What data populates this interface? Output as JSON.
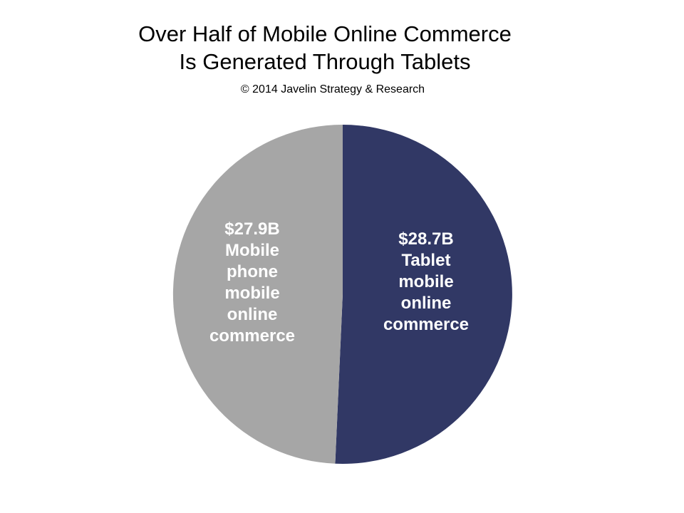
{
  "chart_data": {
    "type": "pie",
    "title_lines": [
      "Over Half of Mobile Online Commerce",
      "Is Generated Through Tablets"
    ],
    "subtitle": "© 2014 Javelin Strategy & Research",
    "slices": [
      {
        "value": 28.7,
        "color": "#313865",
        "label_lines": [
          "$28.7B",
          "Tablet",
          "mobile",
          "online",
          "commerce"
        ]
      },
      {
        "value": 27.9,
        "color": "#a6a6a6",
        "label_lines": [
          "$27.9B",
          "Mobile",
          "phone",
          "mobile",
          "online",
          "commerce"
        ]
      }
    ]
  }
}
